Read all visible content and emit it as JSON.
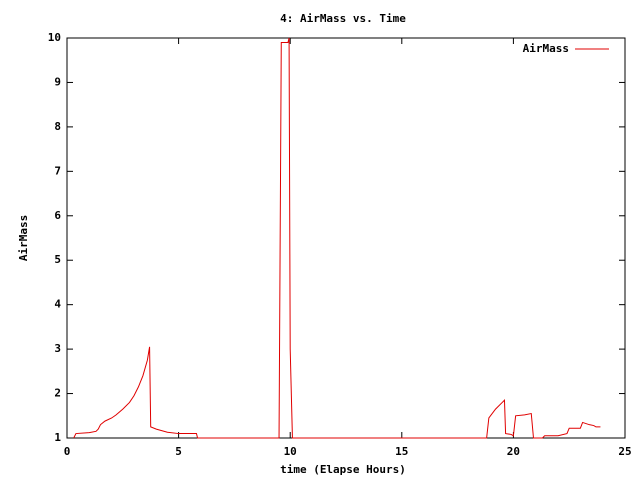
{
  "chart_data": {
    "type": "line",
    "title": "4: AirMass vs. Time",
    "xlabel": "time (Elapse Hours)",
    "ylabel": "AirMass",
    "xlim": [
      0,
      25
    ],
    "ylim": [
      1,
      10
    ],
    "xticks": [
      0,
      5,
      10,
      15,
      20,
      25
    ],
    "yticks": [
      1,
      2,
      3,
      4,
      5,
      6,
      7,
      8,
      9,
      10
    ],
    "legend": "top-right",
    "x": [
      0.3,
      0.4,
      1.0,
      1.3,
      1.4,
      1.5,
      1.7,
      2.0,
      2.2,
      2.5,
      2.8,
      3.0,
      3.2,
      3.4,
      3.6,
      3.7,
      3.75,
      4.0,
      4.5,
      5.0,
      5.8,
      5.85,
      9.5,
      9.6,
      9.9,
      9.95,
      10.0,
      10.1,
      18.8,
      18.9,
      19.2,
      19.5,
      19.6,
      19.65,
      19.9,
      20.0,
      20.1,
      20.5,
      20.8,
      20.9,
      21.3,
      21.4,
      22.0,
      22.4,
      22.5,
      23.0,
      23.1,
      23.4,
      23.6,
      23.7,
      23.9
    ],
    "series": [
      {
        "name": "AirMass",
        "color": "#e00000",
        "values": [
          1.0,
          1.1,
          1.12,
          1.15,
          1.2,
          1.3,
          1.38,
          1.45,
          1.52,
          1.65,
          1.8,
          1.95,
          2.15,
          2.4,
          2.75,
          3.05,
          1.25,
          1.2,
          1.13,
          1.1,
          1.1,
          1.0,
          1.0,
          9.9,
          9.9,
          10.0,
          3.0,
          1.0,
          1.0,
          1.45,
          1.65,
          1.8,
          1.85,
          1.1,
          1.08,
          1.05,
          1.5,
          1.52,
          1.55,
          1.0,
          1.0,
          1.05,
          1.05,
          1.1,
          1.22,
          1.22,
          1.35,
          1.3,
          1.28,
          1.25,
          1.25
        ]
      }
    ]
  }
}
